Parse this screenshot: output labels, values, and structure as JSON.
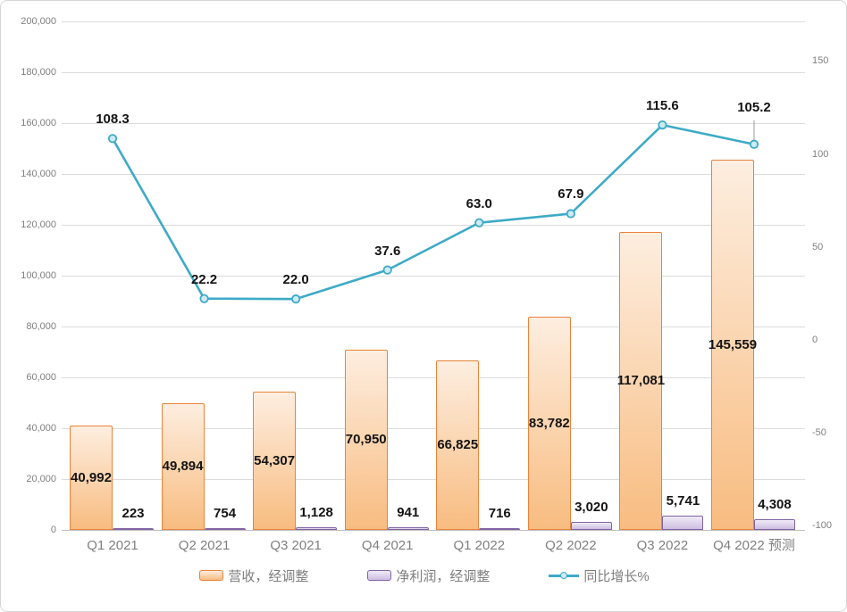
{
  "frame": {
    "background": "#FFFFFF",
    "border_color": "#D7D7D7"
  },
  "chart_data": {
    "type": "combo-bar-line",
    "title": "",
    "categories": [
      "Q1 2021",
      "Q2 2021",
      "Q3 2021",
      "Q4 2021",
      "Q1 2022",
      "Q2 2022",
      "Q3 2022",
      "Q4 2022 预测"
    ],
    "series": [
      {
        "name": "营收，经调整",
        "type": "bar",
        "axis": "left",
        "border_color": "#E8833A",
        "fill_top": "#FDEEE0",
        "fill_bottom": "#F8BC80",
        "values": [
          40992,
          49894,
          54307,
          70950,
          66825,
          83782,
          117081,
          145559
        ],
        "labels": [
          "40,992",
          "49,894",
          "54,307",
          "70,950",
          "66,825",
          "83,782",
          "117,081",
          "145,559"
        ]
      },
      {
        "name": "净利润，经调整",
        "type": "bar",
        "axis": "left",
        "border_color": "#8064A2",
        "fill_top": "#F0EBF6",
        "fill_bottom": "#CDBDE1",
        "values": [
          223,
          754,
          1128,
          941,
          716,
          3020,
          5741,
          4308
        ],
        "labels": [
          "223",
          "754",
          "1,128",
          "941",
          "716",
          "3,020",
          "5,741",
          "4,308"
        ]
      },
      {
        "name": "同比增长%",
        "type": "line",
        "axis": "right",
        "line_color": "#3EAAC6",
        "marker_fill": "#CDEBF4",
        "values": [
          108.3,
          22.2,
          22.0,
          37.6,
          63.0,
          67.9,
          115.6,
          105.2
        ],
        "labels": [
          "108.3",
          "22.2",
          "22.0",
          "37.6",
          "63.0",
          "67.9",
          "115.6",
          "105.2"
        ]
      }
    ],
    "left_axis": {
      "min": 0,
      "max": 200000,
      "step": 20000,
      "tick_labels": [
        "0",
        "20,000",
        "40,000",
        "60,000",
        "80,000",
        "100,000",
        "120,000",
        "140,000",
        "160,000",
        "180,000",
        "200,000"
      ]
    },
    "right_axis": {
      "ticks": [
        150,
        100,
        50,
        0,
        -50,
        -100
      ],
      "tick_labels": [
        "150",
        "100",
        "50",
        "0",
        "-50",
        "-100"
      ]
    },
    "grid": true,
    "legend_position": "bottom"
  },
  "legend": {
    "items": [
      {
        "label": "营收，经调整"
      },
      {
        "label": "净利润，经调整"
      },
      {
        "label": "同比增长%"
      }
    ]
  },
  "styles": {
    "grid_color": "#DCDCDC",
    "axis_line_color": "#C0C0C0",
    "tick_color": "#7F7F7F",
    "category_color": "#808080",
    "data_label_color": "#141414",
    "legend_text_color": "#7F7F7F",
    "leader_line_color": "#9E9E9E"
  }
}
